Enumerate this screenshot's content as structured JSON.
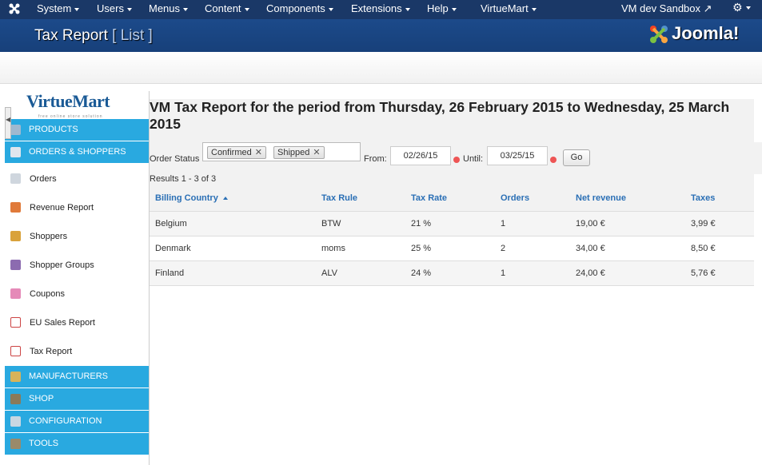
{
  "topbar": {
    "menu": [
      {
        "label": "System"
      },
      {
        "label": "Users"
      },
      {
        "label": "Menus"
      },
      {
        "label": "Content"
      },
      {
        "label": "Components"
      },
      {
        "label": "Extensions"
      },
      {
        "label": "Help"
      },
      {
        "label": "VirtueMart"
      }
    ],
    "sandbox_label": "VM dev Sandbox",
    "gear_icon": "gear-icon"
  },
  "header": {
    "title": "Tax Report",
    "subtitle": "[ List ]",
    "logo_text": "Joomla!"
  },
  "sidebar": {
    "logo_text": "VirtueMart",
    "logo_tagline": "free online store solution",
    "sections": {
      "products": "PRODUCTS",
      "orders": "ORDERS & SHOPPERS",
      "manufacturers": "MANUFACTURERS",
      "shop": "SHOP",
      "configuration": "CONFIGURATION",
      "tools": "TOOLS"
    },
    "items": [
      {
        "label": "Orders",
        "color": "#cfd6de"
      },
      {
        "label": "Revenue Report",
        "color": "#e07a3a"
      },
      {
        "label": "Shoppers",
        "color": "#d9a23b"
      },
      {
        "label": "Shopper Groups",
        "color": "#8c6bb0"
      },
      {
        "label": "Coupons",
        "color": "#e58ab8"
      },
      {
        "label": "EU Sales Report",
        "color": "#c44"
      },
      {
        "label": "Tax Report",
        "color": "#c44"
      }
    ]
  },
  "main": {
    "report_title": "VM Tax Report for the period from Thursday, 26 February 2015 to Wednesday, 25 March 2015",
    "order_status_label": "Order Status",
    "status_chips": [
      "Confirmed",
      "Shipped"
    ],
    "from_label": "From:",
    "from_value": "02/26/15",
    "until_label": "Until:",
    "until_value": "03/25/15",
    "go_label": "Go",
    "results_text": "Results 1 - 3 of 3",
    "columns": [
      "Billing Country",
      "Tax Rule",
      "Tax Rate",
      "Orders",
      "Net revenue",
      "Taxes"
    ],
    "rows": [
      [
        "Belgium",
        "BTW",
        "21 %",
        "1",
        "19,00 €",
        "3,99 €"
      ],
      [
        "Denmark",
        "moms",
        "25 %",
        "2",
        "34,00 €",
        "8,50 €"
      ],
      [
        "Finland",
        "ALV",
        "24 %",
        "1",
        "24,00 €",
        "5,76 €"
      ]
    ]
  },
  "colors": {
    "topbar": "#1a3867",
    "header": "#1c4a8a",
    "sidebar_section": "#29a9e0",
    "link": "#2a6fb5"
  }
}
